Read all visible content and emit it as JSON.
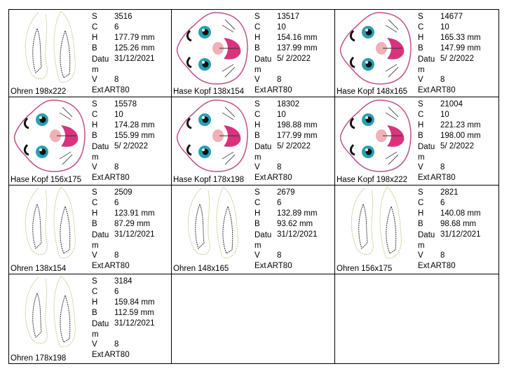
{
  "labels": {
    "s": "S",
    "c": "C",
    "h": "H",
    "b": "B",
    "datum1": "Datu",
    "datum2": "m",
    "v": "V",
    "ext": "Ext"
  },
  "colors": {
    "border": "#000000",
    "ear_outline": "#c8c890",
    "face_pink": "#d8337c",
    "eye": "#2aa0b0"
  },
  "items": [
    {
      "name": "Ohren 198x222",
      "thumb": "ears-icon",
      "s": "3516",
      "c": "6",
      "h": "177.79 mm",
      "b": "125.26 mm",
      "datum": "31/12/2021",
      "v": "8",
      "ext": "ART80"
    },
    {
      "name": "Hase Kopf 138x154",
      "thumb": "bunny-head-icon",
      "s": "13517",
      "c": "10",
      "h": "154.16 mm",
      "b": "137.99 mm",
      "datum": " 5/ 2/2022",
      "v": "8",
      "ext": "ART80"
    },
    {
      "name": "Hase Kopf 148x165",
      "thumb": "bunny-head-icon",
      "s": "14677",
      "c": "10",
      "h": "165.33 mm",
      "b": "147.99 mm",
      "datum": " 5/ 2/2022",
      "v": "8",
      "ext": "ART80"
    },
    {
      "name": "Hase Kopf 156x175",
      "thumb": "bunny-head-icon",
      "s": "15578",
      "c": "10",
      "h": "174.28 mm",
      "b": "155.99 mm",
      "datum": " 5/ 2/2022",
      "v": "8",
      "ext": "ART80"
    },
    {
      "name": "Hase Kopf 178x198",
      "thumb": "bunny-head-icon",
      "s": "18302",
      "c": "10",
      "h": "198.88 mm",
      "b": "177.99 mm",
      "datum": " 5/ 2/2022",
      "v": "8",
      "ext": "ART80"
    },
    {
      "name": "Hase Kopf 198x222",
      "thumb": "bunny-head-icon",
      "s": "21004",
      "c": "10",
      "h": "221.23 mm",
      "b": "198.00 mm",
      "datum": " 5/ 2/2022",
      "v": "8",
      "ext": "ART80"
    },
    {
      "name": "Ohren 138x154",
      "thumb": "ears-icon",
      "s": "2509",
      "c": "6",
      "h": "123.91 mm",
      "b": "87.29 mm",
      "datum": "31/12/2021",
      "v": "8",
      "ext": "ART80"
    },
    {
      "name": "Ohren 148x165",
      "thumb": "ears-icon",
      "s": "2679",
      "c": "6",
      "h": "132.89 mm",
      "b": "93.62 mm",
      "datum": "31/12/2021",
      "v": "8",
      "ext": "ART80"
    },
    {
      "name": "Ohren 156x175",
      "thumb": "ears-icon",
      "s": "2821",
      "c": "6",
      "h": "140.08 mm",
      "b": "98.68 mm",
      "datum": "31/12/2021",
      "v": "8",
      "ext": "ART80"
    },
    {
      "name": "Ohren 178x198",
      "thumb": "ears-icon",
      "s": "3184",
      "c": "6",
      "h": "159.84 mm",
      "b": "112.59 mm",
      "datum": "31/12/2021",
      "v": "8",
      "ext": "ART80"
    }
  ]
}
